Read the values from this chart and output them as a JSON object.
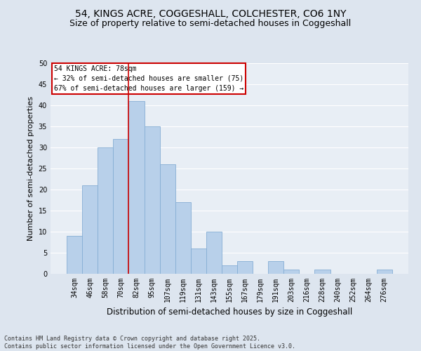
{
  "title": "54, KINGS ACRE, COGGESHALL, COLCHESTER, CO6 1NY",
  "subtitle": "Size of property relative to semi-detached houses in Coggeshall",
  "xlabel": "Distribution of semi-detached houses by size in Coggeshall",
  "ylabel": "Number of semi-detached properties",
  "categories": [
    "34sqm",
    "46sqm",
    "58sqm",
    "70sqm",
    "82sqm",
    "95sqm",
    "107sqm",
    "119sqm",
    "131sqm",
    "143sqm",
    "155sqm",
    "167sqm",
    "179sqm",
    "191sqm",
    "203sqm",
    "216sqm",
    "228sqm",
    "240sqm",
    "252sqm",
    "264sqm",
    "276sqm"
  ],
  "values": [
    9,
    21,
    30,
    32,
    41,
    35,
    26,
    17,
    6,
    10,
    2,
    3,
    0,
    3,
    1,
    0,
    1,
    0,
    0,
    0,
    1
  ],
  "bar_color": "#b8d0ea",
  "bar_edge_color": "#85aed4",
  "annotation_title": "54 KINGS ACRE: 78sqm",
  "annotation_line1": "← 32% of semi-detached houses are smaller (75)",
  "annotation_line2": "67% of semi-detached houses are larger (159) →",
  "annotation_box_facecolor": "#ffffff",
  "annotation_box_edgecolor": "#cc0000",
  "ylim": [
    0,
    50
  ],
  "yticks": [
    0,
    5,
    10,
    15,
    20,
    25,
    30,
    35,
    40,
    45,
    50
  ],
  "bg_color": "#e8eef5",
  "fig_bg_color": "#dde5ef",
  "footer1": "Contains HM Land Registry data © Crown copyright and database right 2025.",
  "footer2": "Contains public sector information licensed under the Open Government Licence v3.0.",
  "title_fontsize": 10,
  "subtitle_fontsize": 9,
  "red_line_x": 3.5,
  "grid_color": "#ffffff",
  "tick_fontsize": 7,
  "ylabel_fontsize": 8,
  "xlabel_fontsize": 8.5
}
